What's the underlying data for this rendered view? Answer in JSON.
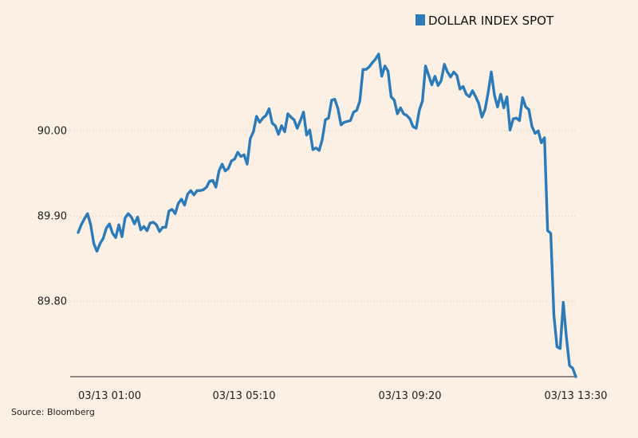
{
  "chart_data": {
    "type": "line",
    "legend": {
      "placement": "top-right",
      "label": "DOLLAR INDEX SPOT"
    },
    "source": "Source: Bloomberg",
    "xtick_labels": [
      "03/13 01:00",
      "03/13 05:10",
      "03/13 09:20",
      "03/13 13:30"
    ],
    "ytick_labels": [
      "89.80",
      "89.90",
      "90.00"
    ],
    "ytick_values": [
      89.8,
      89.9,
      90.0
    ],
    "ylim": [
      89.712,
      90.116
    ],
    "grid": "horizontal dotted",
    "colors": {
      "series": "#2b7bba",
      "background": "#fcefe3",
      "axis": "#222222"
    },
    "series": [
      {
        "name": "DOLLAR INDEX SPOT",
        "values": [
          89.881,
          89.89,
          89.897,
          89.903,
          89.89,
          89.868,
          89.859,
          89.868,
          89.874,
          89.886,
          89.891,
          89.88,
          89.875,
          89.89,
          89.876,
          89.898,
          89.903,
          89.899,
          89.891,
          89.899,
          89.884,
          89.888,
          89.883,
          89.892,
          89.893,
          89.89,
          89.882,
          89.887,
          89.887,
          89.906,
          89.908,
          89.903,
          89.915,
          89.92,
          89.913,
          89.926,
          89.93,
          89.925,
          89.93,
          89.93,
          89.931,
          89.934,
          89.941,
          89.942,
          89.934,
          89.953,
          89.961,
          89.953,
          89.956,
          89.965,
          89.967,
          89.975,
          89.97,
          89.972,
          89.961,
          89.991,
          89.999,
          90.017,
          90.01,
          90.015,
          90.018,
          90.026,
          90.009,
          90.006,
          89.996,
          90.006,
          89.999,
          90.02,
          90.016,
          90.013,
          90.003,
          90.012,
          90.022,
          89.995,
          90.001,
          89.978,
          89.98,
          89.977,
          89.99,
          90.013,
          90.015,
          90.036,
          90.037,
          90.026,
          90.007,
          90.01,
          90.011,
          90.012,
          90.022,
          90.024,
          90.035,
          90.072,
          90.072,
          90.075,
          90.08,
          90.084,
          90.09,
          90.064,
          90.076,
          90.07,
          90.04,
          90.036,
          90.02,
          90.027,
          90.02,
          90.018,
          90.014,
          90.005,
          90.003,
          90.024,
          90.035,
          90.076,
          90.065,
          90.054,
          90.064,
          90.053,
          90.059,
          90.078,
          90.069,
          90.063,
          90.069,
          90.065,
          90.049,
          90.052,
          90.043,
          90.04,
          90.047,
          90.04,
          90.032,
          90.016,
          90.025,
          90.045,
          90.069,
          90.042,
          90.028,
          90.043,
          90.027,
          90.04,
          90.001,
          90.014,
          90.015,
          90.012,
          90.039,
          90.028,
          90.025,
          90.005,
          89.997,
          90.0,
          89.986,
          89.992,
          89.883,
          89.88,
          89.784,
          89.747,
          89.745,
          89.799,
          89.758,
          89.725,
          89.722,
          89.712
        ]
      }
    ]
  }
}
